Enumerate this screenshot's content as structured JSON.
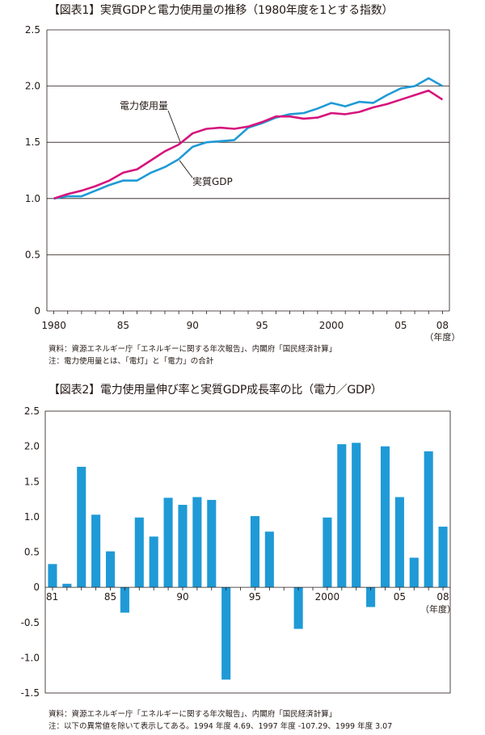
{
  "chart_data": [
    {
      "type": "line",
      "title": "【図表1】実質GDPと電力使用量の推移（1980年度を1とする指数）",
      "xlabel": "（年度）",
      "ylabel": "",
      "x": [
        1980,
        1981,
        1982,
        1983,
        1984,
        1985,
        1986,
        1987,
        1988,
        1989,
        1990,
        1991,
        1992,
        1993,
        1994,
        1995,
        1996,
        1997,
        1998,
        1999,
        2000,
        2001,
        2002,
        2003,
        2004,
        2005,
        2006,
        2007,
        2008
      ],
      "x_tick_values": [
        1980,
        1985,
        1990,
        1995,
        2000,
        2005,
        2008
      ],
      "x_tick_labels": [
        "1980",
        "85",
        "90",
        "95",
        "2000",
        "05",
        "08"
      ],
      "y_ticks": [
        "0",
        "0.5",
        "1.0",
        "1.5",
        "2.0",
        "2.5"
      ],
      "ylim": [
        0,
        2.5
      ],
      "grid": "horizontal",
      "series": [
        {
          "name": "実質GDP",
          "color": "#1f9ad6",
          "values": [
            1.0,
            1.02,
            1.02,
            1.07,
            1.12,
            1.16,
            1.16,
            1.23,
            1.28,
            1.35,
            1.46,
            1.5,
            1.51,
            1.52,
            1.63,
            1.67,
            1.72,
            1.75,
            1.76,
            1.8,
            1.85,
            1.82,
            1.86,
            1.85,
            1.92,
            1.98,
            2.0,
            2.07,
            2.0
          ]
        },
        {
          "name": "電力使用量",
          "color": "#d6147c",
          "values": [
            1.0,
            1.04,
            1.07,
            1.11,
            1.16,
            1.23,
            1.26,
            1.34,
            1.42,
            1.48,
            1.58,
            1.62,
            1.63,
            1.62,
            1.64,
            1.68,
            1.73,
            1.73,
            1.71,
            1.72,
            1.76,
            1.75,
            1.77,
            1.81,
            1.84,
            1.88,
            1.92,
            1.96,
            1.88
          ]
        }
      ],
      "annotations": [
        {
          "text": "電力使用量",
          "series": 1
        },
        {
          "text": "実質GDP",
          "series": 0
        }
      ]
    },
    {
      "type": "bar",
      "title": "【図表2】電力使用量伸び率と実質GDP成長率の比（電力／GDP）",
      "xlabel": "（年度）",
      "ylabel": "",
      "categories": [
        1981,
        1982,
        1983,
        1984,
        1985,
        1986,
        1987,
        1988,
        1989,
        1990,
        1991,
        1992,
        1993,
        1994,
        1995,
        1996,
        1997,
        1998,
        1999,
        2000,
        2001,
        2002,
        2003,
        2004,
        2005,
        2006,
        2007,
        2008
      ],
      "x_tick_values": [
        1981,
        1985,
        1990,
        1995,
        2000,
        2005,
        2008
      ],
      "x_tick_labels": [
        "81",
        "85",
        "90",
        "95",
        "2000",
        "05",
        "08"
      ],
      "y_ticks": [
        "2.5",
        "2.0",
        "1.5",
        "1.0",
        "0.5",
        "0",
        "-0.5",
        "-1.0",
        "-1.5"
      ],
      "ylim": [
        -1.5,
        2.5
      ],
      "color": "#1f9ad6",
      "values": [
        0.33,
        0.05,
        1.71,
        1.03,
        0.51,
        -0.36,
        0.99,
        0.72,
        1.27,
        1.17,
        1.28,
        1.24,
        -1.31,
        null,
        1.01,
        0.79,
        null,
        -0.59,
        null,
        0.99,
        2.03,
        2.05,
        -0.28,
        2.0,
        1.28,
        0.42,
        1.93,
        0.86
      ]
    }
  ],
  "notes": {
    "fig1_line1": "資料：資源エネルギー庁「エネルギーに関する年次報告」、内閣府「国民経済計算」",
    "fig1_line2": "注：電力使用量とは、「電灯」と「電力」の合計",
    "fig2_line1": "資料：資源エネルギー庁「エネルギーに関する年次報告」、内閣府「国民経済計算」",
    "fig2_line2": "注：以下の異常値を除いて表示してある。1994 年度 4.69、1997 年度 -107.29、1999 年度 3.07"
  }
}
